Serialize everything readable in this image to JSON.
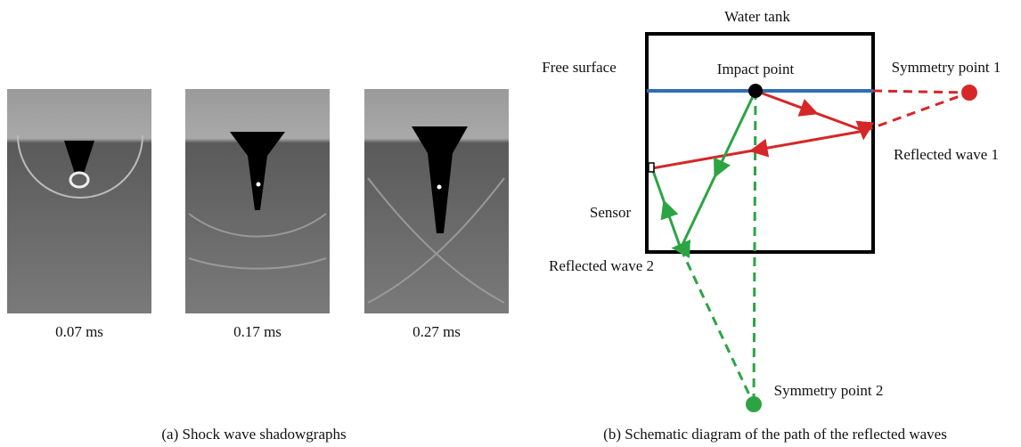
{
  "panel_a": {
    "images": [
      {
        "time": "0.07 ms"
      },
      {
        "time": "0.17 ms"
      },
      {
        "time": "0.27 ms"
      }
    ],
    "caption": "(a) Shock wave shadowgraphs"
  },
  "panel_b": {
    "water_tank": "Water tank",
    "free_surface": "Free surface",
    "impact_point": "Impact point",
    "symmetry_point_1": "Symmetry point 1",
    "reflected_wave_1": "Reflected wave 1",
    "sensor": "Sensor",
    "reflected_wave_2": "Reflected wave 2",
    "symmetry_point_2": "Symmetry point 2",
    "caption": "(b) Schematic diagram of the path of the reflected waves"
  }
}
